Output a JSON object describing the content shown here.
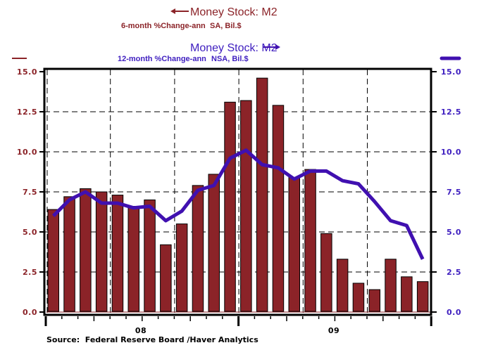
{
  "legend": {
    "series1": {
      "title": "Money Stock: M2",
      "subtitle": "6-month %Change-ann",
      "units": "SA, Bil.$",
      "arrow": "left-arrow",
      "axis": "left"
    },
    "series2": {
      "title": "Money Stock: M2",
      "subtitle": "12-month %Change-ann",
      "units": "NSA, Bil.$",
      "arrow": "right-arrow",
      "axis": "right"
    }
  },
  "source": "Source:  Federal Reserve Board /Haver Analytics",
  "colors": {
    "bar": "#8b2328",
    "line": "#4010b0",
    "left_axis_text": "#8b2328",
    "right_axis_text": "#4020c0"
  },
  "chart_data": {
    "type": "bar+line",
    "title": "Money Stock: M2",
    "x_tick_labels": [
      "08",
      "09"
    ],
    "left_axis": {
      "ticks": [
        "15.0",
        "12.5",
        "10.0",
        "7.5",
        "5.0",
        "2.5",
        "0.0"
      ],
      "ylim": [
        0,
        15
      ]
    },
    "right_axis": {
      "ticks": [
        "15.0",
        "12.5",
        "10.0",
        "7.5",
        "5.0",
        "2.5",
        "0.0"
      ],
      "ylim": [
        0,
        15
      ]
    },
    "grid": true,
    "periods": 24,
    "series": [
      {
        "name": "Money Stock: M2 6-month %Change-ann SA, Bil.$",
        "type": "bar",
        "axis": "left",
        "values": [
          6.4,
          7.2,
          7.7,
          7.5,
          7.3,
          6.6,
          7.0,
          4.2,
          5.5,
          7.9,
          8.6,
          13.1,
          13.2,
          14.6,
          12.9,
          8.4,
          8.9,
          4.9,
          3.3,
          1.8,
          1.4,
          3.3,
          2.2,
          1.9
        ]
      },
      {
        "name": "Money Stock: M2 12-month %Change-ann NSA, Bil.$",
        "type": "line",
        "axis": "right",
        "values": [
          6.0,
          7.0,
          7.5,
          6.8,
          6.8,
          6.5,
          6.6,
          5.7,
          6.3,
          7.6,
          7.9,
          9.6,
          10.1,
          9.2,
          9.0,
          8.3,
          8.8,
          8.8,
          8.2,
          8.0,
          6.9,
          5.7,
          5.4,
          3.3
        ]
      }
    ]
  }
}
